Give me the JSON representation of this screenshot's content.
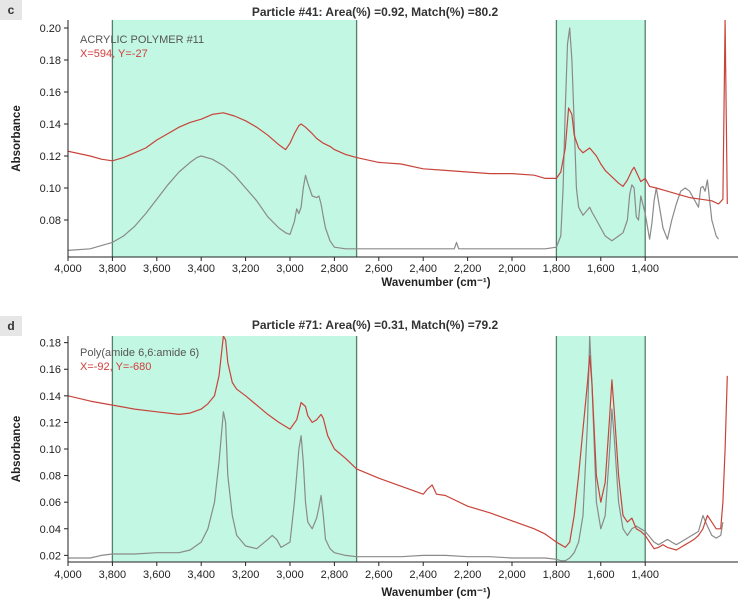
{
  "colors": {
    "highlight": "#c2f7e3",
    "band_line": "#55806c",
    "sample": "#c8443a",
    "reference": "#8a8a8a",
    "axis": "#222222",
    "coords_text": "#d23c3c"
  },
  "panels": [
    {
      "label": "c",
      "title": "Particle #41: Area(%) =0.92, Match(%) =80.2",
      "legend_name": "ACRYLIC POLYMER #11",
      "legend_coords": "X=594, Y=-27"
    },
    {
      "label": "d",
      "title": "Particle #71: Area(%) =0.31, Match(%) =79.2",
      "legend_name": "Poly(amide 6,6:amide 6)",
      "legend_coords": "X=-92, Y=-680"
    }
  ],
  "chart_data": [
    {
      "type": "line",
      "title": "Particle #41: Area(%) =0.92, Match(%) =80.2",
      "xlabel": "Wavenumber (cm⁻¹)",
      "ylabel": "Absorbance",
      "xlim": [
        4000,
        1000
      ],
      "ylim": [
        0.06,
        0.205
      ],
      "x_ticks": [
        4000,
        3800,
        3600,
        3400,
        3200,
        3000,
        2800,
        2600,
        2400,
        2200,
        2000,
        1800,
        1600,
        1400
      ],
      "x_tick_labels": [
        "4,000",
        "3,800",
        "3,600",
        "3,400",
        "3,200",
        "3,000",
        "2,800",
        "2,600",
        "2,400",
        "2,200",
        "2,000",
        "1,800",
        "1,600",
        "1,400"
      ],
      "y_ticks": [
        0.08,
        0.1,
        0.12,
        0.14,
        0.16,
        0.18,
        0.2
      ],
      "y_tick_labels": [
        "0.08",
        "0.10",
        "0.12",
        "0.14",
        "0.16",
        "0.18",
        "0.20"
      ],
      "highlight_regions": [
        [
          3800,
          2700
        ],
        [
          1800,
          1400
        ]
      ],
      "grid": false,
      "series": [
        {
          "name": "X=594, Y=-27",
          "color": "#c8443a",
          "x": [
            4000,
            3900,
            3850,
            3800,
            3750,
            3700,
            3650,
            3600,
            3550,
            3500,
            3450,
            3400,
            3350,
            3300,
            3250,
            3200,
            3150,
            3100,
            3050,
            3020,
            3000,
            2980,
            2960,
            2950,
            2930,
            2900,
            2880,
            2850,
            2820,
            2800,
            2750,
            2700,
            2600,
            2500,
            2400,
            2300,
            2200,
            2100,
            2000,
            1900,
            1850,
            1800,
            1780,
            1760,
            1745,
            1730,
            1720,
            1700,
            1680,
            1650,
            1620,
            1600,
            1580,
            1550,
            1520,
            1500,
            1480,
            1460,
            1450,
            1440,
            1420,
            1400,
            1380,
            1350,
            1300,
            1250,
            1200,
            1150,
            1100,
            1070,
            1050,
            1040,
            1030
          ],
          "y": [
            0.123,
            0.12,
            0.118,
            0.117,
            0.119,
            0.122,
            0.125,
            0.13,
            0.134,
            0.138,
            0.141,
            0.143,
            0.146,
            0.147,
            0.145,
            0.142,
            0.138,
            0.133,
            0.127,
            0.124,
            0.128,
            0.134,
            0.139,
            0.14,
            0.138,
            0.134,
            0.131,
            0.128,
            0.126,
            0.124,
            0.121,
            0.119,
            0.116,
            0.115,
            0.112,
            0.111,
            0.11,
            0.109,
            0.109,
            0.108,
            0.106,
            0.106,
            0.11,
            0.125,
            0.15,
            0.146,
            0.133,
            0.125,
            0.122,
            0.125,
            0.12,
            0.115,
            0.111,
            0.107,
            0.103,
            0.101,
            0.105,
            0.111,
            0.113,
            0.11,
            0.104,
            0.106,
            0.101,
            0.1,
            0.098,
            0.096,
            0.094,
            0.093,
            0.092,
            0.09,
            0.093,
            0.205,
            0.09
          ]
        },
        {
          "name": "ACRYLIC POLYMER #11",
          "color": "#8a8a8a",
          "x": [
            4000,
            3900,
            3850,
            3800,
            3750,
            3700,
            3650,
            3600,
            3550,
            3500,
            3450,
            3420,
            3400,
            3350,
            3300,
            3250,
            3200,
            3150,
            3100,
            3050,
            3020,
            3000,
            2980,
            2970,
            2960,
            2950,
            2940,
            2930,
            2920,
            2900,
            2880,
            2870,
            2860,
            2850,
            2840,
            2820,
            2800,
            2750,
            2700,
            2600,
            2500,
            2400,
            2300,
            2260,
            2250,
            2240,
            2200,
            2100,
            2000,
            1900,
            1850,
            1800,
            1780,
            1770,
            1760,
            1750,
            1745,
            1740,
            1730,
            1720,
            1710,
            1700,
            1680,
            1650,
            1640,
            1620,
            1600,
            1580,
            1550,
            1520,
            1500,
            1480,
            1470,
            1460,
            1450,
            1440,
            1430,
            1420,
            1400,
            1380,
            1370,
            1360,
            1350,
            1320,
            1300,
            1280,
            1260,
            1240,
            1220,
            1200,
            1180,
            1160,
            1150,
            1140,
            1130,
            1120,
            1100,
            1080,
            1070
          ],
          "y": [
            0.061,
            0.062,
            0.064,
            0.066,
            0.07,
            0.076,
            0.084,
            0.093,
            0.102,
            0.11,
            0.116,
            0.119,
            0.12,
            0.118,
            0.114,
            0.108,
            0.1,
            0.092,
            0.082,
            0.075,
            0.072,
            0.071,
            0.079,
            0.087,
            0.084,
            0.088,
            0.1,
            0.108,
            0.103,
            0.095,
            0.094,
            0.095,
            0.09,
            0.082,
            0.075,
            0.067,
            0.063,
            0.062,
            0.062,
            0.062,
            0.062,
            0.062,
            0.062,
            0.062,
            0.066,
            0.062,
            0.062,
            0.062,
            0.062,
            0.062,
            0.062,
            0.063,
            0.07,
            0.1,
            0.15,
            0.19,
            0.195,
            0.2,
            0.18,
            0.14,
            0.1,
            0.088,
            0.083,
            0.088,
            0.085,
            0.08,
            0.075,
            0.07,
            0.067,
            0.07,
            0.072,
            0.08,
            0.096,
            0.102,
            0.1,
            0.082,
            0.08,
            0.095,
            0.084,
            0.068,
            0.078,
            0.092,
            0.1,
            0.075,
            0.068,
            0.08,
            0.09,
            0.098,
            0.1,
            0.098,
            0.093,
            0.088,
            0.1,
            0.101,
            0.098,
            0.105,
            0.08,
            0.07,
            0.068
          ]
        }
      ]
    },
    {
      "type": "line",
      "title": "Particle #71: Area(%) =0.31, Match(%) =79.2",
      "xlabel": "Wavenumber (cm⁻¹)",
      "ylabel": "Absorbance",
      "xlim": [
        4000,
        1000
      ],
      "ylim": [
        0.015,
        0.185
      ],
      "x_ticks": [
        4000,
        3800,
        3600,
        3400,
        3200,
        3000,
        2800,
        2600,
        2400,
        2200,
        2000,
        1800,
        1600,
        1400
      ],
      "x_tick_labels": [
        "4,000",
        "3,800",
        "3,600",
        "3,400",
        "3,200",
        "3,000",
        "2,800",
        "2,600",
        "2,400",
        "2,200",
        "2,000",
        "1,800",
        "1,600",
        "1,400"
      ],
      "y_ticks": [
        0.02,
        0.04,
        0.06,
        0.08,
        0.1,
        0.12,
        0.14,
        0.16,
        0.18
      ],
      "y_tick_labels": [
        "0.02",
        "0.04",
        "0.06",
        "0.08",
        "0.10",
        "0.12",
        "0.14",
        "0.16",
        "0.18"
      ],
      "highlight_regions": [
        [
          3800,
          2700
        ],
        [
          1800,
          1400
        ]
      ],
      "grid": false,
      "series": [
        {
          "name": "X=-92, Y=-680",
          "color": "#c8443a",
          "x": [
            4000,
            3900,
            3800,
            3700,
            3600,
            3500,
            3450,
            3400,
            3370,
            3340,
            3320,
            3300,
            3290,
            3280,
            3260,
            3240,
            3200,
            3150,
            3100,
            3050,
            3000,
            2970,
            2950,
            2930,
            2920,
            2900,
            2880,
            2860,
            2850,
            2830,
            2800,
            2750,
            2700,
            2600,
            2500,
            2400,
            2380,
            2360,
            2340,
            2300,
            2200,
            2100,
            2000,
            1900,
            1850,
            1800,
            1780,
            1760,
            1740,
            1720,
            1700,
            1680,
            1660,
            1650,
            1640,
            1620,
            1600,
            1580,
            1560,
            1550,
            1540,
            1520,
            1500,
            1480,
            1460,
            1440,
            1420,
            1400,
            1380,
            1360,
            1340,
            1320,
            1300,
            1280,
            1260,
            1240,
            1220,
            1200,
            1180,
            1160,
            1140,
            1120,
            1100,
            1080,
            1060,
            1050,
            1040,
            1030
          ],
          "y": [
            0.14,
            0.136,
            0.133,
            0.13,
            0.128,
            0.126,
            0.127,
            0.13,
            0.134,
            0.14,
            0.155,
            0.185,
            0.182,
            0.165,
            0.15,
            0.145,
            0.14,
            0.133,
            0.126,
            0.12,
            0.115,
            0.122,
            0.135,
            0.132,
            0.125,
            0.12,
            0.122,
            0.126,
            0.123,
            0.11,
            0.1,
            0.093,
            0.085,
            0.078,
            0.072,
            0.066,
            0.07,
            0.073,
            0.066,
            0.065,
            0.057,
            0.052,
            0.046,
            0.04,
            0.036,
            0.03,
            0.028,
            0.026,
            0.03,
            0.05,
            0.08,
            0.115,
            0.15,
            0.17,
            0.15,
            0.08,
            0.06,
            0.075,
            0.125,
            0.152,
            0.13,
            0.08,
            0.05,
            0.045,
            0.048,
            0.04,
            0.038,
            0.035,
            0.03,
            0.025,
            0.026,
            0.028,
            0.026,
            0.025,
            0.024,
            0.026,
            0.028,
            0.03,
            0.032,
            0.035,
            0.04,
            0.05,
            0.045,
            0.04,
            0.04,
            0.06,
            0.1,
            0.155
          ]
        },
        {
          "name": "Poly(amide 6,6:amide 6)",
          "color": "#8a8a8a",
          "x": [
            4000,
            3900,
            3850,
            3800,
            3700,
            3600,
            3500,
            3450,
            3400,
            3370,
            3340,
            3320,
            3300,
            3290,
            3280,
            3260,
            3240,
            3200,
            3150,
            3100,
            3080,
            3060,
            3040,
            3000,
            2980,
            2960,
            2950,
            2940,
            2930,
            2920,
            2900,
            2880,
            2870,
            2860,
            2850,
            2840,
            2820,
            2800,
            2750,
            2700,
            2600,
            2500,
            2400,
            2300,
            2200,
            2100,
            2000,
            1900,
            1850,
            1800,
            1780,
            1760,
            1740,
            1720,
            1700,
            1680,
            1660,
            1650,
            1640,
            1620,
            1600,
            1580,
            1560,
            1550,
            1540,
            1520,
            1500,
            1480,
            1460,
            1440,
            1420,
            1400,
            1380,
            1360,
            1340,
            1320,
            1300,
            1280,
            1260,
            1240,
            1220,
            1200,
            1180,
            1160,
            1140,
            1120,
            1100,
            1080,
            1060,
            1050
          ],
          "y": [
            0.018,
            0.018,
            0.02,
            0.021,
            0.021,
            0.022,
            0.022,
            0.024,
            0.03,
            0.04,
            0.06,
            0.09,
            0.128,
            0.12,
            0.08,
            0.05,
            0.035,
            0.027,
            0.025,
            0.032,
            0.035,
            0.032,
            0.026,
            0.03,
            0.06,
            0.1,
            0.11,
            0.09,
            0.06,
            0.045,
            0.04,
            0.048,
            0.056,
            0.065,
            0.05,
            0.032,
            0.025,
            0.022,
            0.02,
            0.019,
            0.019,
            0.019,
            0.02,
            0.02,
            0.019,
            0.019,
            0.018,
            0.018,
            0.018,
            0.017,
            0.016,
            0.016,
            0.018,
            0.022,
            0.03,
            0.05,
            0.12,
            0.185,
            0.15,
            0.06,
            0.04,
            0.05,
            0.1,
            0.13,
            0.11,
            0.06,
            0.04,
            0.035,
            0.04,
            0.042,
            0.04,
            0.038,
            0.034,
            0.03,
            0.028,
            0.03,
            0.032,
            0.03,
            0.028,
            0.03,
            0.032,
            0.034,
            0.036,
            0.038,
            0.05,
            0.042,
            0.035,
            0.033,
            0.035,
            0.045
          ]
        }
      ]
    }
  ]
}
